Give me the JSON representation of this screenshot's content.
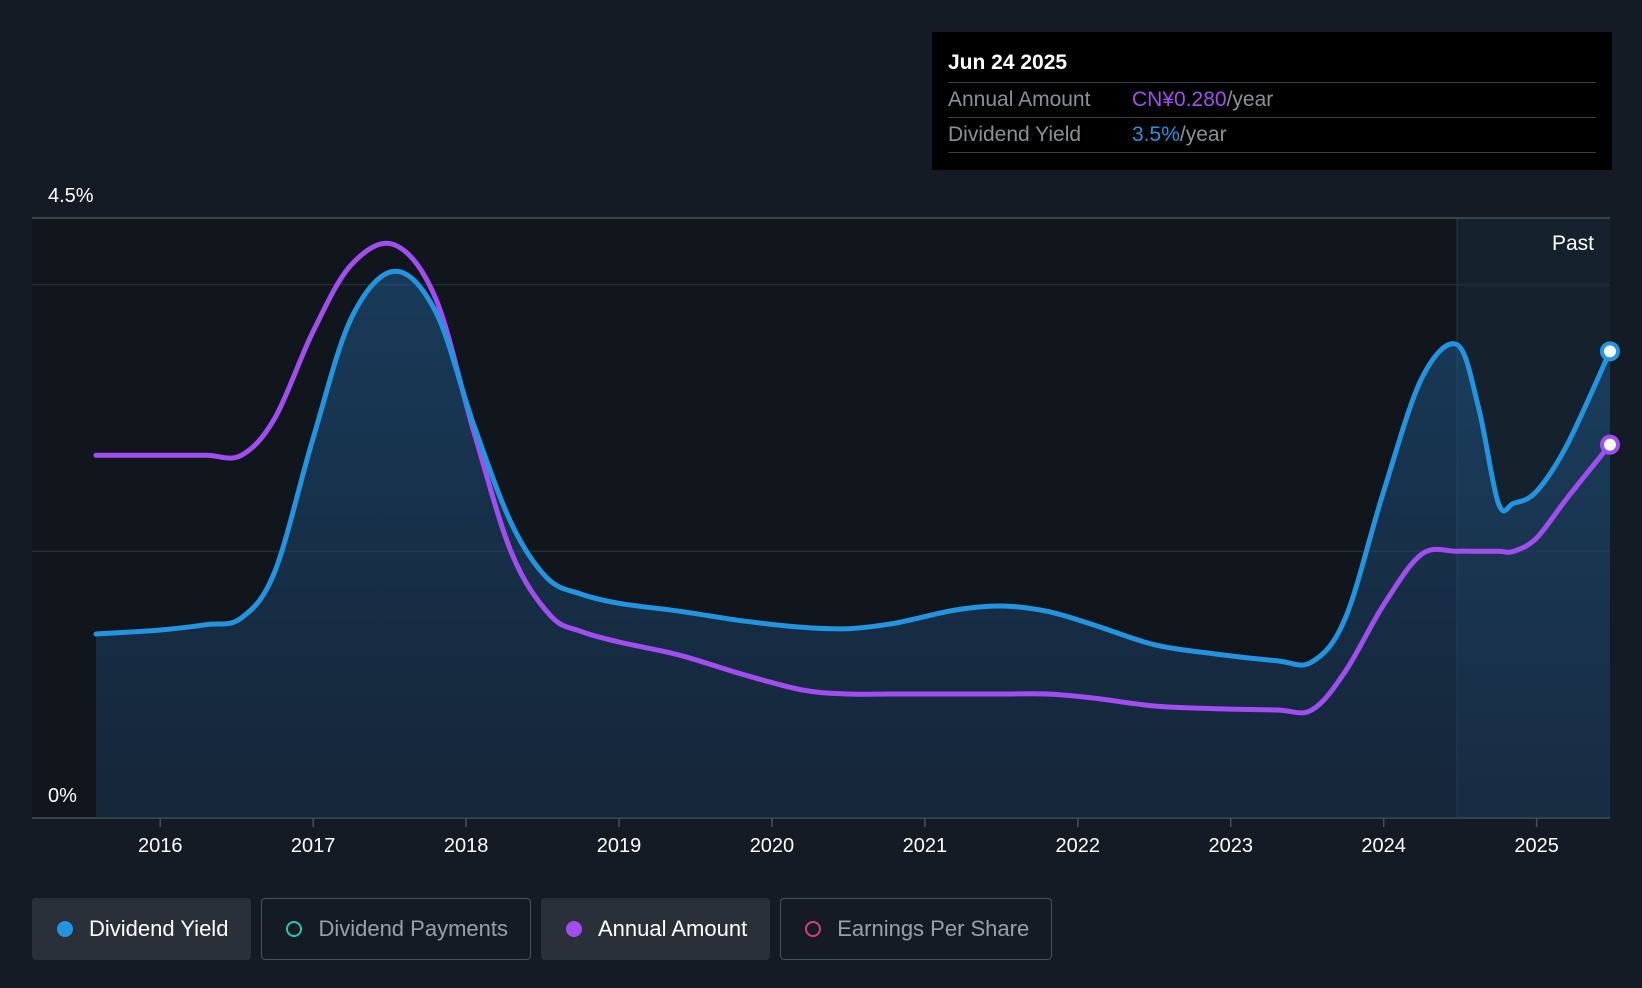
{
  "colors": {
    "dividend_yield": "#2394df",
    "annual_amount": "#a04ef0",
    "dividend_payments": "#26c9b0",
    "earnings_per_share": "#d43f7a",
    "background": "#151b24"
  },
  "tooltip": {
    "date": "Jun 24 2025",
    "rows": [
      {
        "label": "Annual Amount",
        "value": "CN¥0.280",
        "unit": "/year",
        "color": "#a04ef0"
      },
      {
        "label": "Dividend Yield",
        "value": "3.5%",
        "unit": "/year",
        "color": "#2394df"
      }
    ]
  },
  "legend": [
    {
      "label": "Dividend Yield",
      "active": true,
      "filled": true,
      "color": "#2394df",
      "icon": "filled-circle-icon"
    },
    {
      "label": "Dividend Payments",
      "active": false,
      "filled": false,
      "color": "#26c9b0",
      "icon": "hollow-circle-icon"
    },
    {
      "label": "Annual Amount",
      "active": true,
      "filled": true,
      "color": "#a04ef0",
      "icon": "filled-circle-icon"
    },
    {
      "label": "Earnings Per Share",
      "active": false,
      "filled": false,
      "color": "#d43f7a",
      "icon": "hollow-circle-icon"
    }
  ],
  "chart_data": {
    "type": "line",
    "y_axis_labels": [
      "4.5%",
      "0%"
    ],
    "ylim": [
      0,
      4.5
    ],
    "xlim": [
      2015.58,
      2025.48
    ],
    "x_ticks": [
      2016,
      2017,
      2018,
      2019,
      2020,
      2021,
      2022,
      2023,
      2024,
      2025
    ],
    "x_tick_labels": [
      "2016",
      "2017",
      "2018",
      "2019",
      "2020",
      "2021",
      "2022",
      "2023",
      "2024",
      "2025"
    ],
    "gridlines_y": [
      2.0,
      4.0
    ],
    "past_region_start": 2024.48,
    "past_label": "Past",
    "series": [
      {
        "name": "Dividend Yield",
        "color": "#2394df",
        "filled_area": true,
        "x": [
          2015.58,
          2016.0,
          2016.3,
          2016.53,
          2016.75,
          2017.0,
          2017.25,
          2017.53,
          2017.8,
          2018.05,
          2018.3,
          2018.53,
          2018.75,
          2019.0,
          2019.4,
          2019.8,
          2020.2,
          2020.5,
          2020.8,
          2021.2,
          2021.5,
          2021.8,
          2022.1,
          2022.5,
          2022.9,
          2023.3,
          2023.53,
          2023.75,
          2024.0,
          2024.25,
          2024.48,
          2024.62,
          2024.75,
          2024.85,
          2025.0,
          2025.2,
          2025.48
        ],
        "y": [
          1.38,
          1.41,
          1.45,
          1.5,
          1.85,
          2.85,
          3.75,
          4.1,
          3.8,
          2.95,
          2.2,
          1.8,
          1.68,
          1.61,
          1.55,
          1.48,
          1.43,
          1.42,
          1.46,
          1.56,
          1.59,
          1.55,
          1.45,
          1.3,
          1.23,
          1.18,
          1.17,
          1.5,
          2.45,
          3.3,
          3.55,
          3.08,
          2.36,
          2.36,
          2.45,
          2.8,
          3.5
        ]
      },
      {
        "name": "Annual Amount",
        "color": "#a04ef0",
        "filled_area": false,
        "x": [
          2015.58,
          2016.0,
          2016.3,
          2016.53,
          2016.75,
          2017.0,
          2017.25,
          2017.53,
          2017.8,
          2018.05,
          2018.3,
          2018.55,
          2018.75,
          2019.0,
          2019.4,
          2019.8,
          2020.2,
          2020.5,
          2020.8,
          2021.2,
          2021.5,
          2021.8,
          2022.1,
          2022.5,
          2022.9,
          2023.3,
          2023.53,
          2023.75,
          2024.0,
          2024.25,
          2024.48,
          2024.62,
          2024.75,
          2024.85,
          2025.0,
          2025.2,
          2025.48
        ],
        "y": [
          2.72,
          2.72,
          2.72,
          2.72,
          3.0,
          3.65,
          4.15,
          4.3,
          3.9,
          2.9,
          1.98,
          1.52,
          1.4,
          1.32,
          1.22,
          1.08,
          0.96,
          0.93,
          0.93,
          0.93,
          0.93,
          0.93,
          0.9,
          0.84,
          0.82,
          0.81,
          0.81,
          1.1,
          1.6,
          1.98,
          2.0,
          2.0,
          2.0,
          2.0,
          2.1,
          2.4,
          2.8
        ]
      }
    ]
  }
}
